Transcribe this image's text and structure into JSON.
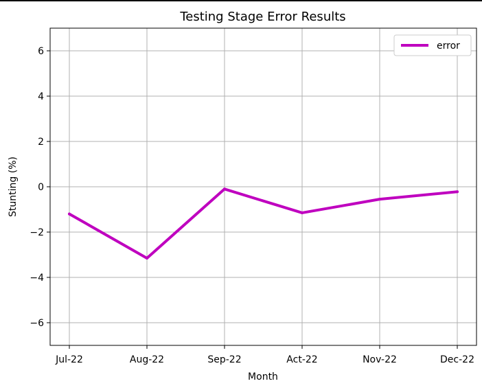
{
  "chart_data": {
    "type": "line",
    "title": "Testing Stage Error Results",
    "xlabel": "Month",
    "ylabel": "Stunting (%)",
    "categories": [
      "Jul-22",
      "Aug-22",
      "Sep-22",
      "Act-22",
      "Nov-22",
      "Dec-22"
    ],
    "series": [
      {
        "name": "error",
        "values": [
          -1.2,
          -3.15,
          -0.1,
          -1.15,
          -0.55,
          -0.22
        ],
        "color": "#bf00bf"
      }
    ],
    "ylim": [
      -7,
      7
    ],
    "yticks": [
      -6,
      -4,
      -2,
      0,
      2,
      4,
      6
    ],
    "ytick_labels": [
      "−6",
      "−4",
      "−2",
      "0",
      "2",
      "4",
      "6"
    ],
    "grid": true,
    "legend_position": "top-right"
  }
}
